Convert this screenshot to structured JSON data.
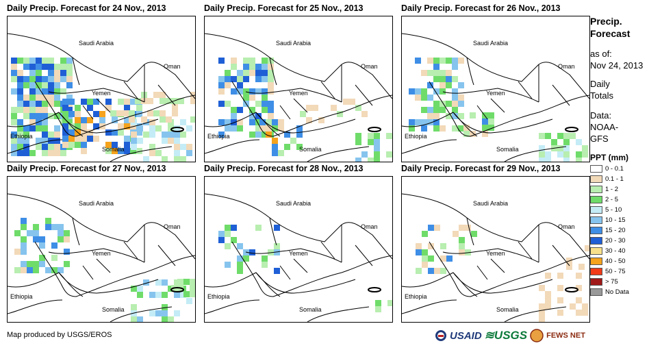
{
  "panels": [
    {
      "title": "Daily Precip. Forecast for 24 Nov., 2013"
    },
    {
      "title": "Daily Precip. Forecast for 25 Nov., 2013"
    },
    {
      "title": "Daily Precip. Forecast for 26 Nov., 2013"
    },
    {
      "title": "Daily Precip. Forecast for 27 Nov., 2013"
    },
    {
      "title": "Daily Precip. Forecast for 28 Nov., 2013"
    },
    {
      "title": "Daily Precip. Forecast for 29 Nov., 2013"
    }
  ],
  "map_labels": {
    "saudi": "Saudi Arabia",
    "oman": "Oman",
    "yemen": "Yemen",
    "ethiopia": "Ethiopia",
    "somalia": "Somalia"
  },
  "legend": {
    "title_line1": "Precip.",
    "title_line2": "Forecast",
    "asof_line1": "as of:",
    "asof_line2": "Nov 24, 2013",
    "daily_line1": "Daily",
    "daily_line2": "Totals",
    "data_line1": "Data:",
    "data_line2": "NOAA-",
    "data_line3": "GFS",
    "ppt_title": "PPT (mm)",
    "classes": [
      {
        "label": "0 - 0.1",
        "color": "#ffffff"
      },
      {
        "label": "0.1 - 1",
        "color": "#f2d9b8"
      },
      {
        "label": "1 - 2",
        "color": "#b8eeb0"
      },
      {
        "label": "2 - 5",
        "color": "#6fdc6a"
      },
      {
        "label": "5 - 10",
        "color": "#c4ecf6"
      },
      {
        "label": "10 - 15",
        "color": "#86c4ee"
      },
      {
        "label": "15 - 20",
        "color": "#3e8ee6"
      },
      {
        "label": "20 - 30",
        "color": "#1f5fd6"
      },
      {
        "label": "30 - 40",
        "color": "#f8e08a"
      },
      {
        "label": "40 - 50",
        "color": "#f5a21c"
      },
      {
        "label": "50 - 75",
        "color": "#f03a18"
      },
      {
        "label": "> 75",
        "color": "#a01818"
      },
      {
        "label": "No Data",
        "color": "#999999"
      }
    ]
  },
  "footer": {
    "credit": "Map produced by USGS/EROS"
  },
  "logos": {
    "usaid": "USAID",
    "usgs": "≋USGS",
    "fews": "FEWS NET"
  }
}
